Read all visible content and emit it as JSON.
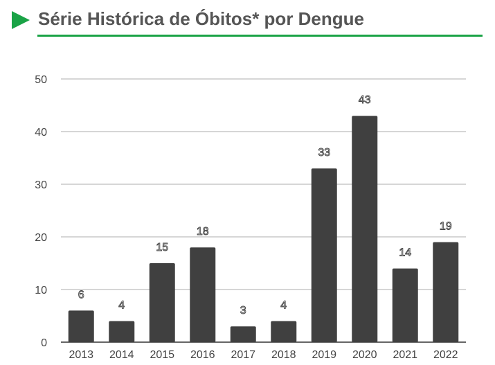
{
  "header": {
    "title": "Série Histórica de Óbitos* por Dengue",
    "accent_color": "#1aa346",
    "arrow_icon": "play-triangle-icon"
  },
  "chart_data": {
    "type": "bar",
    "title": "",
    "xlabel": "",
    "ylabel": "",
    "categories": [
      "2013",
      "2014",
      "2015",
      "2016",
      "2017",
      "2018",
      "2019",
      "2020",
      "2021",
      "2022"
    ],
    "values": [
      6,
      4,
      15,
      18,
      3,
      4,
      33,
      43,
      14,
      19
    ],
    "ylim": [
      0,
      50
    ],
    "yticks": [
      0,
      10,
      20,
      30,
      40,
      50
    ],
    "grid": true,
    "legend": "none",
    "bar_color": "#404040",
    "data_labels": true
  }
}
